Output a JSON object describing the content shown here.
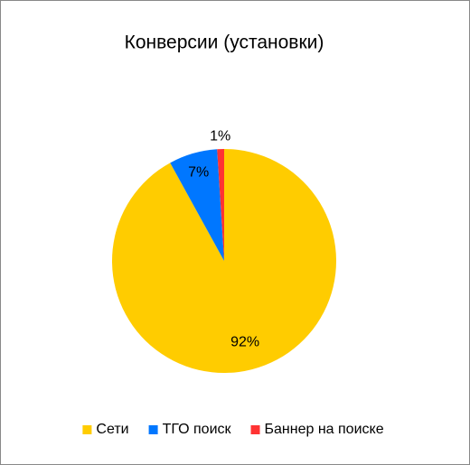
{
  "chart_data": {
    "type": "pie",
    "title": "Конверсии (установки)",
    "categories": [
      "Сети",
      "ТГО поиск",
      "Баннер на поиске"
    ],
    "values": [
      92,
      7,
      1
    ],
    "value_labels": [
      "92%",
      "7%",
      "1%"
    ],
    "colors": [
      "#ffcc00",
      "#0077ff",
      "#ff3333"
    ],
    "legend": "bottom"
  }
}
